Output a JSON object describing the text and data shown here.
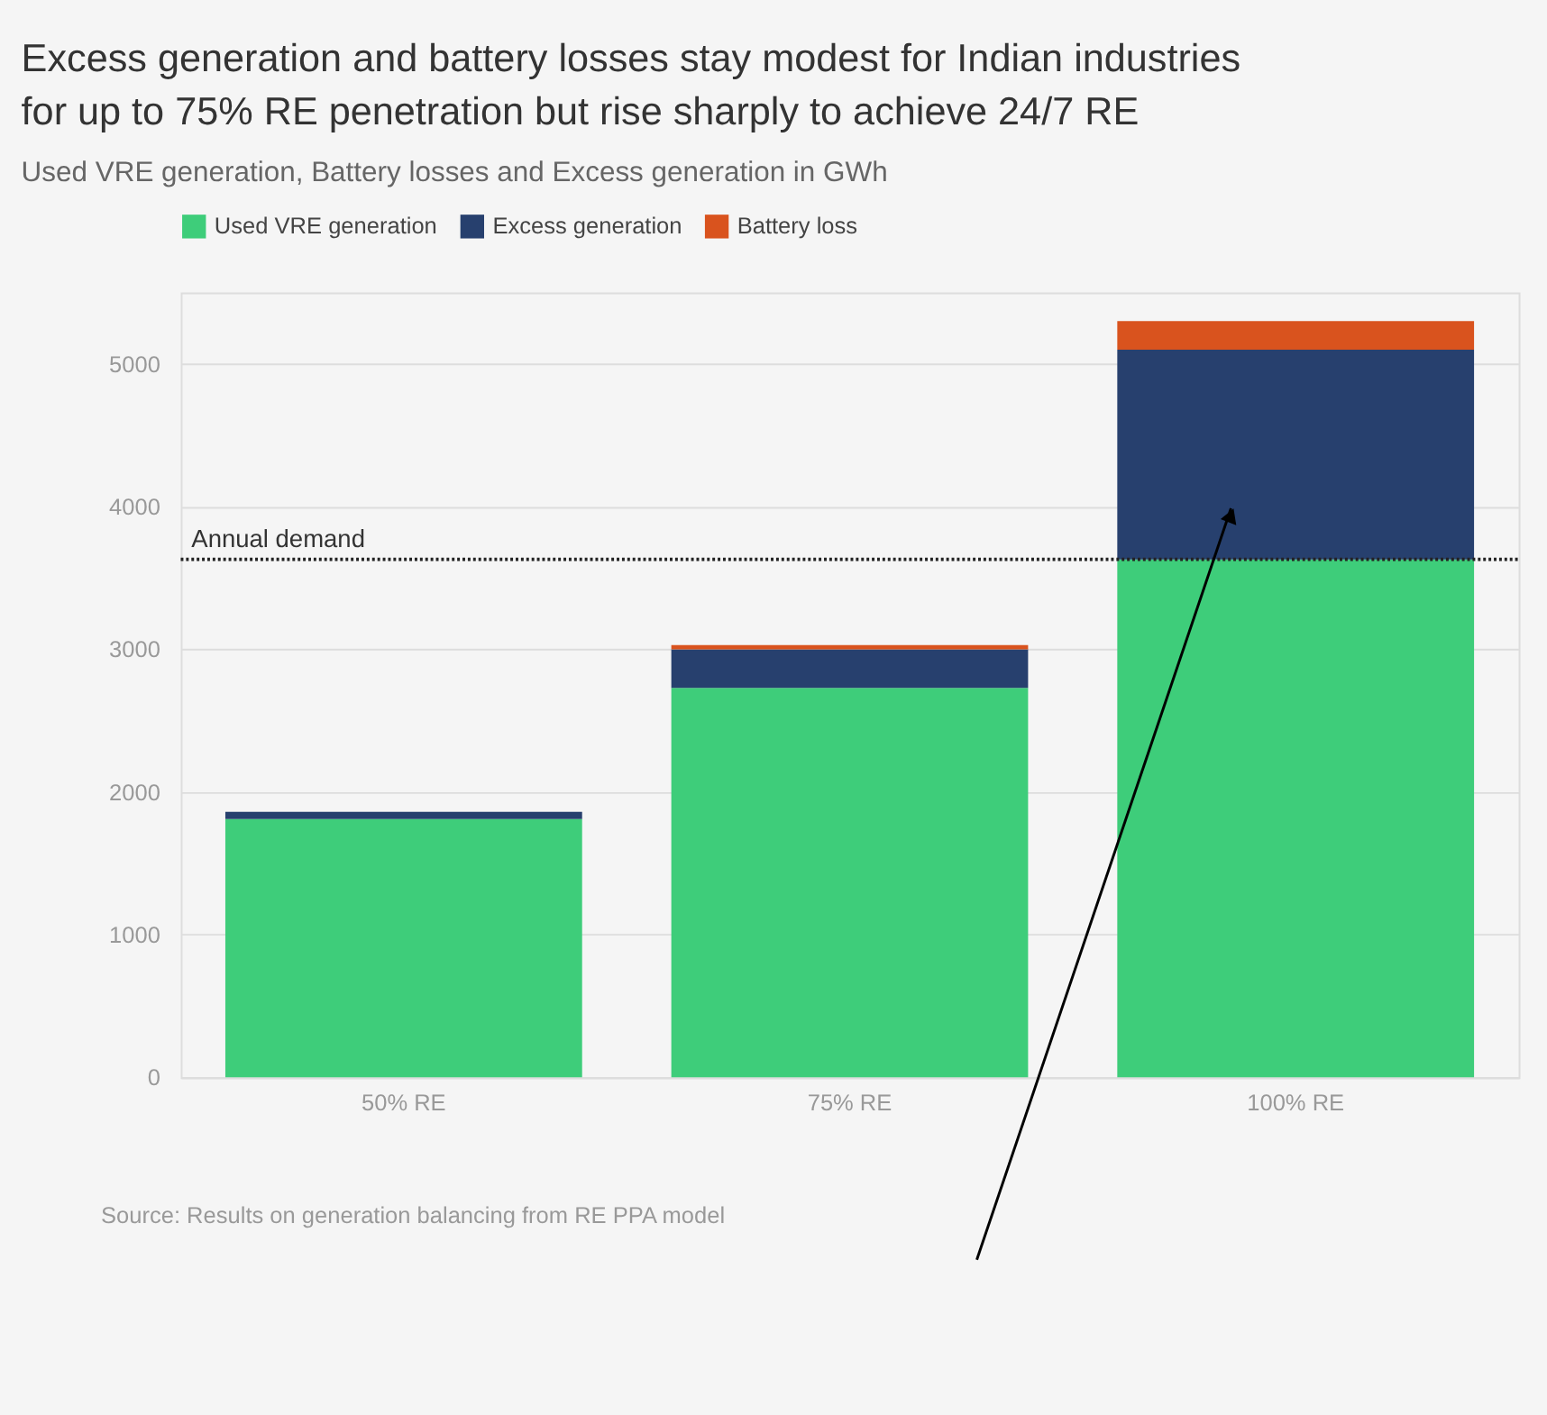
{
  "chart_data": {
    "type": "bar",
    "stacked": true,
    "title": "Excess generation and battery losses stay modest for Indian industries for up to 75% RE penetration but rise sharply to achieve 24/7 RE",
    "subtitle": "Used VRE generation, Battery losses and Excess generation in GWh",
    "categories": [
      "50% RE",
      "75% RE",
      "100% RE"
    ],
    "series": [
      {
        "name": "Used VRE generation",
        "color": "#3ecd7a",
        "values": [
          1810,
          2730,
          3630
        ]
      },
      {
        "name": "Excess generation",
        "color": "#27406e",
        "values": [
          50,
          270,
          1470
        ]
      },
      {
        "name": "Battery loss",
        "color": "#d9531e",
        "values": [
          0,
          30,
          200
        ]
      }
    ],
    "ylim": [
      0,
      5500
    ],
    "yticks": [
      0,
      1000,
      2000,
      3000,
      4000,
      5000
    ],
    "grid": "y",
    "legend": "top left",
    "ref_lines": [
      {
        "axis": "y",
        "value": 3630,
        "label": "Annual demand",
        "color": "#222222",
        "line_style": "dotted"
      }
    ],
    "annotations": [
      "Source: Results on generation balancing from RE PPA model"
    ]
  }
}
